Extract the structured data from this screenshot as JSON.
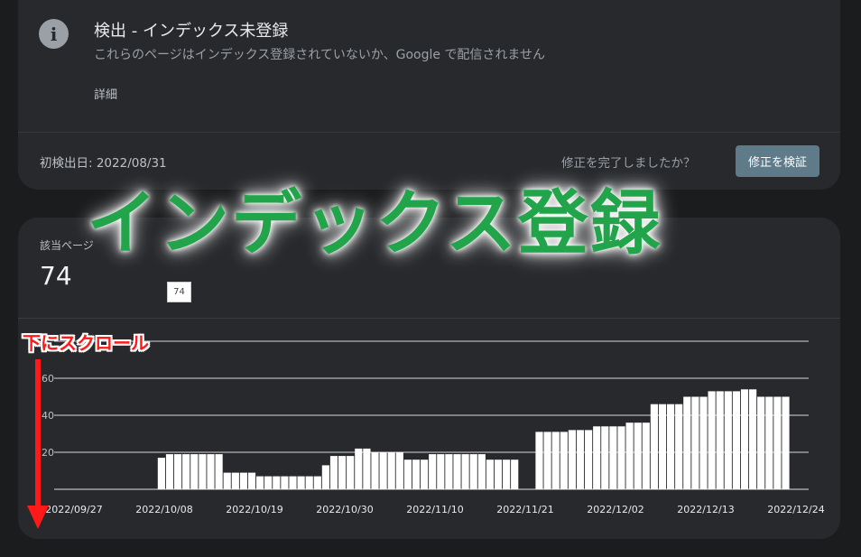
{
  "issue": {
    "icon": "info-icon",
    "title": "検出 - インデックス未登録",
    "description": "これらのページはインデックス登録されていないか、Google で配信されません",
    "details_link": "詳細",
    "first_detected": "初検出日: 2022/08/31",
    "fix_question": "修正を完了しましたか？",
    "validate_button": "修正を検証"
  },
  "affected": {
    "label": "該当ページ",
    "value": "74",
    "tooltip_value": "74"
  },
  "overlay": {
    "title": "インデックス登録",
    "title_color": "#22a54a",
    "scroll_label": "下にスクロール",
    "arrow_icon": "arrow-down-icon",
    "accent_color": "#ff1a1a"
  },
  "chart_data": {
    "type": "bar",
    "title": "",
    "xlabel": "",
    "ylabel": "",
    "x_tick_labels": [
      "2022/09/27",
      "2022/10/08",
      "2022/10/19",
      "2022/10/30",
      "2022/11/10",
      "2022/11/21",
      "2022/12/02",
      "2022/12/13",
      "2022/12/24"
    ],
    "y_tick_labels": [
      "",
      "60",
      "40",
      "20"
    ],
    "y_ticks": [
      80,
      60,
      40,
      20
    ],
    "ylim": [
      0,
      80
    ],
    "grid": true,
    "bar_color": "#ffffff",
    "values": [
      0,
      0,
      0,
      0,
      0,
      0,
      0,
      0,
      17,
      19,
      19,
      19,
      19,
      19,
      19,
      19,
      9,
      9,
      9,
      9,
      7,
      7,
      7,
      7,
      7,
      7,
      7,
      7,
      13,
      18,
      18,
      18,
      22,
      22,
      20,
      20,
      20,
      20,
      16,
      16,
      16,
      19,
      19,
      19,
      19,
      19,
      19,
      19,
      16,
      16,
      16,
      16,
      0,
      0,
      31,
      31,
      31,
      31,
      32,
      32,
      32,
      34,
      34,
      34,
      34,
      36,
      36,
      36,
      46,
      46,
      46,
      46,
      50,
      50,
      50,
      53,
      53,
      53,
      53,
      54,
      54,
      50,
      50,
      50,
      50
    ]
  }
}
